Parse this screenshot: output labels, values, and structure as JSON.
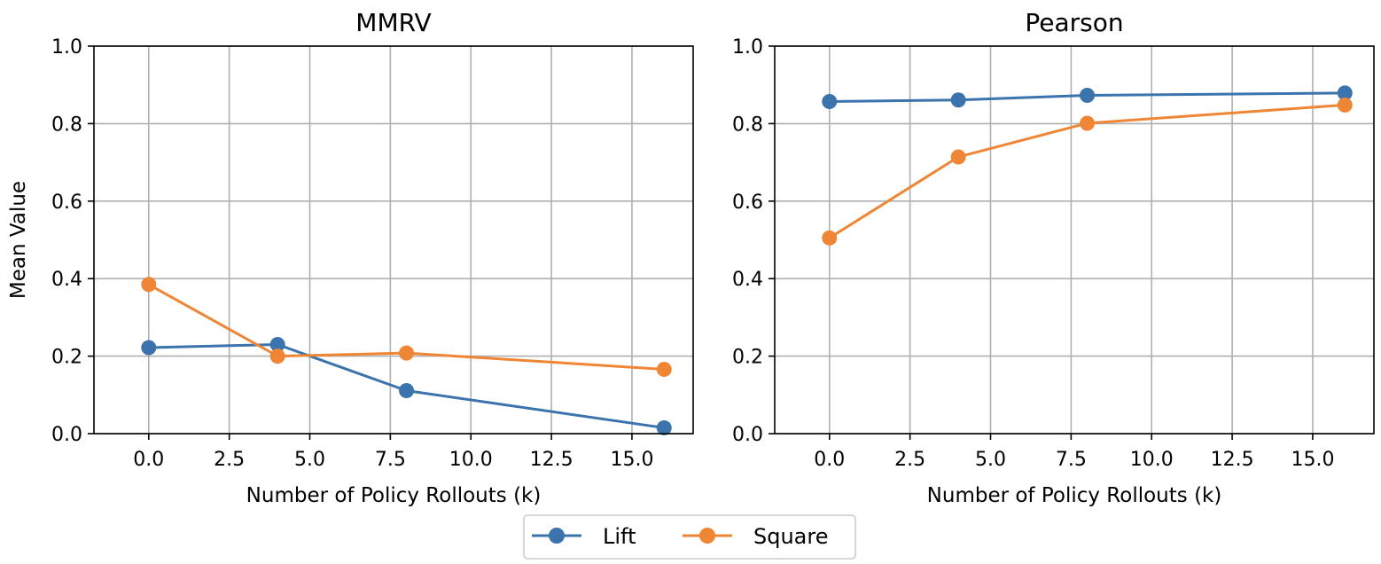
{
  "colors": {
    "lift": "#3b73ad",
    "square": "#ef8636",
    "grid": "#b0b0b0"
  },
  "legend": {
    "placement": "bottom-center",
    "entries": [
      {
        "name": "Lift",
        "color": "#3b73ad"
      },
      {
        "name": "Square",
        "color": "#ef8636"
      }
    ]
  },
  "chart_data": [
    {
      "type": "line",
      "title": "MMRV",
      "xlabel": "Number of Policy Rollouts (k)",
      "ylabel": "Mean Value",
      "xlim": [
        -1.7,
        16.9
      ],
      "ylim": [
        0.0,
        1.0
      ],
      "xticks": [
        "0.0",
        "2.5",
        "5.0",
        "7.5",
        "10.0",
        "12.5",
        "15.0"
      ],
      "xtick_values": [
        0,
        2.5,
        5,
        7.5,
        10,
        12.5,
        15
      ],
      "yticks": [
        "0.0",
        "0.2",
        "0.4",
        "0.6",
        "0.8",
        "1.0"
      ],
      "ytick_values": [
        0,
        0.2,
        0.4,
        0.6,
        0.8,
        1.0
      ],
      "grid": true,
      "x": [
        0,
        4,
        8,
        16
      ],
      "series": [
        {
          "name": "Lift",
          "values": [
            0.222,
            0.23,
            0.111,
            0.015
          ]
        },
        {
          "name": "Square",
          "values": [
            0.385,
            0.2,
            0.208,
            0.166
          ]
        }
      ]
    },
    {
      "type": "line",
      "title": "Pearson",
      "xlabel": "Number of Policy Rollouts (k)",
      "ylabel": "",
      "xlim": [
        -1.7,
        16.9
      ],
      "ylim": [
        0.0,
        1.0
      ],
      "xticks": [
        "0.0",
        "2.5",
        "5.0",
        "7.5",
        "10.0",
        "12.5",
        "15.0"
      ],
      "xtick_values": [
        0,
        2.5,
        5,
        7.5,
        10,
        12.5,
        15
      ],
      "yticks": [
        "0.0",
        "0.2",
        "0.4",
        "0.6",
        "0.8",
        "1.0"
      ],
      "ytick_values": [
        0,
        0.2,
        0.4,
        0.6,
        0.8,
        1.0
      ],
      "grid": true,
      "x": [
        0,
        4,
        8,
        16
      ],
      "series": [
        {
          "name": "Lift",
          "values": [
            0.857,
            0.861,
            0.873,
            0.879
          ]
        },
        {
          "name": "Square",
          "values": [
            0.505,
            0.714,
            0.801,
            0.848
          ]
        }
      ]
    }
  ]
}
